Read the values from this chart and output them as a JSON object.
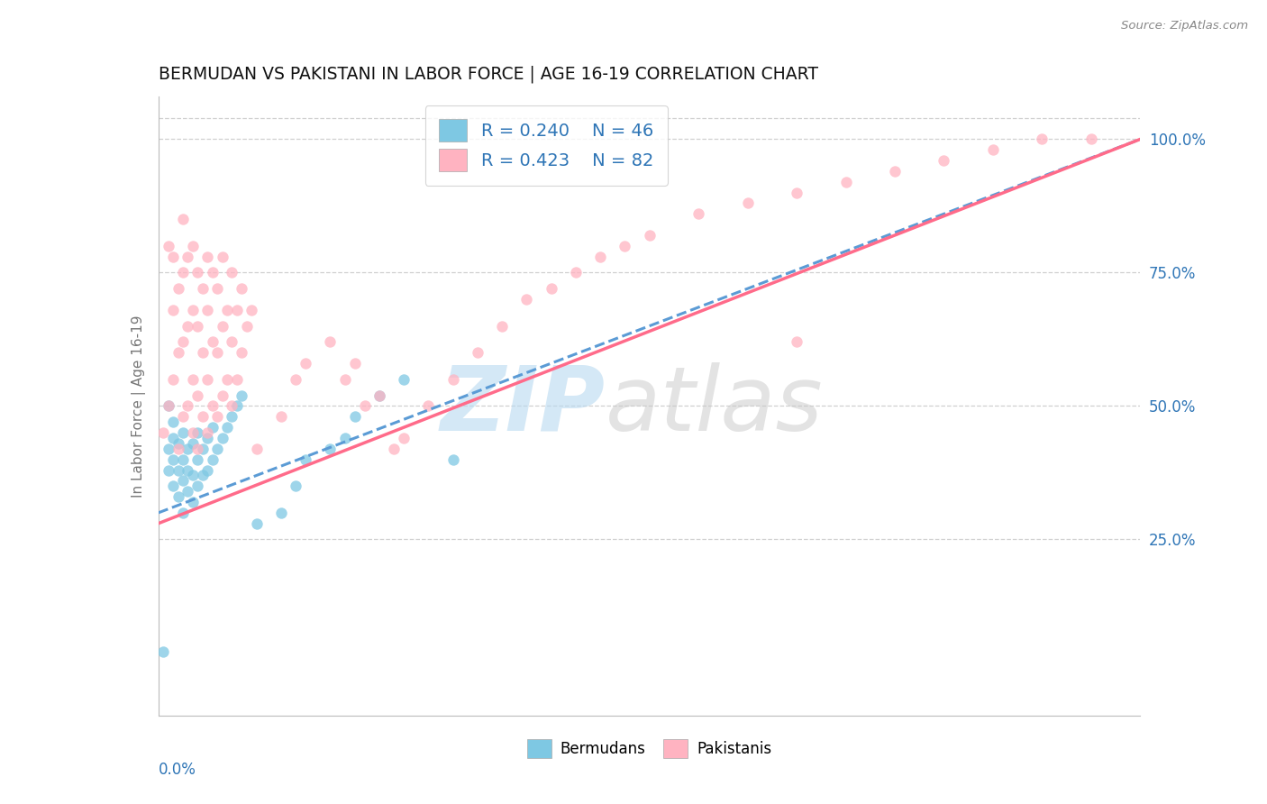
{
  "title": "BERMUDAN VS PAKISTANI IN LABOR FORCE | AGE 16-19 CORRELATION CHART",
  "source": "Source: ZipAtlas.com",
  "ylabel": "In Labor Force | Age 16-19",
  "right_ytick_vals": [
    0.25,
    0.5,
    0.75,
    1.0
  ],
  "right_ytick_labels": [
    "25.0%",
    "50.0%",
    "75.0%",
    "100.0%"
  ],
  "blue_scatter_color": "#7ec8e3",
  "blue_line_color": "#5b9bd5",
  "pink_scatter_color": "#ffb3c1",
  "pink_line_color": "#ff6b8a",
  "legend_text_color": "#2e75b6",
  "bermudans_R": 0.24,
  "bermudans_N": 46,
  "pakistanis_R": 0.423,
  "pakistanis_N": 82,
  "xlim": [
    0.0,
    0.2
  ],
  "ylim": [
    -0.08,
    1.08
  ],
  "berm_x": [
    0.001,
    0.002,
    0.002,
    0.002,
    0.003,
    0.003,
    0.003,
    0.003,
    0.004,
    0.004,
    0.004,
    0.005,
    0.005,
    0.005,
    0.005,
    0.006,
    0.006,
    0.006,
    0.007,
    0.007,
    0.007,
    0.008,
    0.008,
    0.008,
    0.009,
    0.009,
    0.01,
    0.01,
    0.011,
    0.011,
    0.012,
    0.013,
    0.014,
    0.015,
    0.016,
    0.017,
    0.02,
    0.025,
    0.028,
    0.03,
    0.035,
    0.038,
    0.04,
    0.045,
    0.05,
    0.06
  ],
  "berm_y": [
    0.04,
    0.38,
    0.42,
    0.5,
    0.35,
    0.4,
    0.44,
    0.47,
    0.33,
    0.38,
    0.43,
    0.3,
    0.36,
    0.4,
    0.45,
    0.34,
    0.38,
    0.42,
    0.32,
    0.37,
    0.43,
    0.35,
    0.4,
    0.45,
    0.37,
    0.42,
    0.38,
    0.44,
    0.4,
    0.46,
    0.42,
    0.44,
    0.46,
    0.48,
    0.5,
    0.52,
    0.28,
    0.3,
    0.35,
    0.4,
    0.42,
    0.44,
    0.48,
    0.52,
    0.55,
    0.4
  ],
  "pak_x": [
    0.001,
    0.002,
    0.002,
    0.003,
    0.003,
    0.003,
    0.004,
    0.004,
    0.004,
    0.005,
    0.005,
    0.005,
    0.005,
    0.006,
    0.006,
    0.006,
    0.007,
    0.007,
    0.007,
    0.007,
    0.008,
    0.008,
    0.008,
    0.008,
    0.009,
    0.009,
    0.009,
    0.01,
    0.01,
    0.01,
    0.01,
    0.011,
    0.011,
    0.011,
    0.012,
    0.012,
    0.012,
    0.013,
    0.013,
    0.013,
    0.014,
    0.014,
    0.015,
    0.015,
    0.015,
    0.016,
    0.016,
    0.017,
    0.017,
    0.018,
    0.019,
    0.02,
    0.025,
    0.028,
    0.03,
    0.035,
    0.038,
    0.04,
    0.042,
    0.045,
    0.048,
    0.05,
    0.055,
    0.06,
    0.065,
    0.07,
    0.075,
    0.08,
    0.085,
    0.09,
    0.095,
    0.1,
    0.11,
    0.12,
    0.13,
    0.14,
    0.15,
    0.16,
    0.17,
    0.18,
    0.19,
    0.13
  ],
  "pak_y": [
    0.45,
    0.5,
    0.8,
    0.55,
    0.68,
    0.78,
    0.42,
    0.6,
    0.72,
    0.48,
    0.62,
    0.75,
    0.85,
    0.5,
    0.65,
    0.78,
    0.45,
    0.55,
    0.68,
    0.8,
    0.42,
    0.52,
    0.65,
    0.75,
    0.48,
    0.6,
    0.72,
    0.45,
    0.55,
    0.68,
    0.78,
    0.5,
    0.62,
    0.75,
    0.48,
    0.6,
    0.72,
    0.52,
    0.65,
    0.78,
    0.55,
    0.68,
    0.5,
    0.62,
    0.75,
    0.55,
    0.68,
    0.6,
    0.72,
    0.65,
    0.68,
    0.42,
    0.48,
    0.55,
    0.58,
    0.62,
    0.55,
    0.58,
    0.5,
    0.52,
    0.42,
    0.44,
    0.5,
    0.55,
    0.6,
    0.65,
    0.7,
    0.72,
    0.75,
    0.78,
    0.8,
    0.82,
    0.86,
    0.88,
    0.9,
    0.92,
    0.94,
    0.96,
    0.98,
    1.0,
    1.0,
    0.62
  ]
}
